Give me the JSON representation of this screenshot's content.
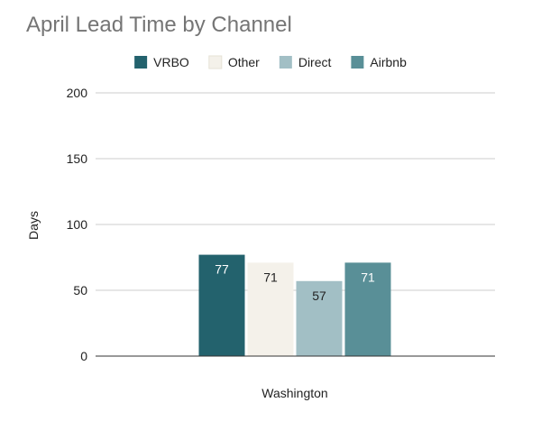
{
  "chart_data": {
    "type": "bar",
    "title": "April Lead Time by Channel",
    "xlabel": "Washington",
    "ylabel": "Days",
    "categories": [
      "Washington"
    ],
    "series": [
      {
        "name": "VRBO",
        "values": [
          77
        ],
        "color": "#23626D"
      },
      {
        "name": "Other",
        "values": [
          71
        ],
        "color": "#F4F1EA"
      },
      {
        "name": "Direct",
        "values": [
          57
        ],
        "color": "#A2BFC5"
      },
      {
        "name": "Airbnb",
        "values": [
          71
        ],
        "color": "#598F97"
      }
    ],
    "ylim": [
      0,
      200
    ],
    "yticks": [
      0,
      50,
      100,
      150,
      200
    ],
    "grid": true,
    "legend_position": "top",
    "data_labels": true
  },
  "colors": {
    "title": "#757575",
    "text": "#222222",
    "grid": "#cccccc",
    "axis": "#333333"
  }
}
